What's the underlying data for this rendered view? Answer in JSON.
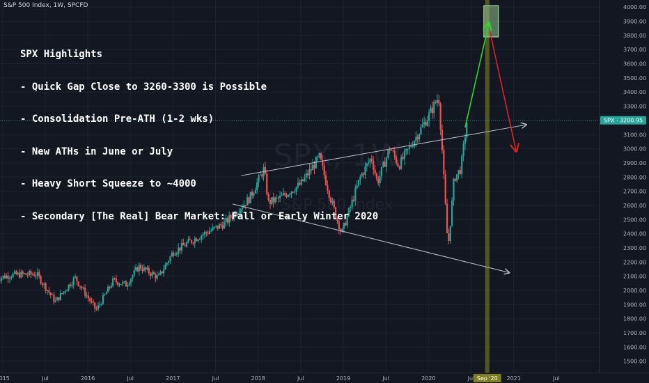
{
  "header": {
    "symbol_title": "S&P 500 Index, 1W, SPCFD"
  },
  "watermark": {
    "ticker": "SPX, 1W",
    "name": "S&P 500 Index"
  },
  "annotation": {
    "title": "SPX Highlights",
    "lines": [
      "- Quick Gap Close to 3260-3300 is Possible",
      "- Consolidation Pre-ATH (1-2 wks)",
      "- New ATHs in June or July",
      "- Heavy Short Squeeze to ~4000",
      "- Secondary [The Real] Bear Market: Fall or Early Winter 2020"
    ]
  },
  "price_label": {
    "text": "SPX · 3200.95",
    "value": 3200.95
  },
  "x_highlight_label": "Sep '20",
  "colors": {
    "background": "#131722",
    "up_candle": "#26a69a",
    "down_candle": "#ef5350",
    "grid": "#1e2230",
    "trendline": "#b2b5be",
    "bull_arrow": "#2ad82a",
    "bear_arrow": "#e02222",
    "target_box": "#8fc08a",
    "time_highlight": "#8a8a22",
    "price_line": "#26a69a"
  },
  "chart_data": {
    "type": "candlestick",
    "interval": "1W",
    "ylim": [
      1420,
      4050
    ],
    "y_ticks": [
      1500,
      1600,
      1700,
      1800,
      1900,
      2000,
      2100,
      2200,
      2300,
      2400,
      2500,
      2600,
      2700,
      2800,
      2900,
      3000,
      3100,
      3200,
      3300,
      3400,
      3500,
      3600,
      3700,
      3800,
      3900,
      4000
    ],
    "x_ticks": [
      {
        "t": 2015.0,
        "label": "2015"
      },
      {
        "t": 2015.5,
        "label": "Jul"
      },
      {
        "t": 2016.0,
        "label": "2016"
      },
      {
        "t": 2016.5,
        "label": "Jul"
      },
      {
        "t": 2017.0,
        "label": "2017"
      },
      {
        "t": 2017.5,
        "label": "Jul"
      },
      {
        "t": 2018.0,
        "label": "2018"
      },
      {
        "t": 2018.5,
        "label": "Jul"
      },
      {
        "t": 2019.0,
        "label": "2019"
      },
      {
        "t": 2019.5,
        "label": "Jul"
      },
      {
        "t": 2020.0,
        "label": "2020"
      },
      {
        "t": 2020.5,
        "label": "Jul"
      },
      {
        "t": 2021.0,
        "label": "2021"
      },
      {
        "t": 2021.5,
        "label": "Jul"
      }
    ],
    "key_closes": [
      {
        "t": 2014.93,
        "c": 2085
      },
      {
        "t": 2015.1,
        "c": 2110
      },
      {
        "t": 2015.4,
        "c": 2115
      },
      {
        "t": 2015.62,
        "c": 1920
      },
      {
        "t": 2015.85,
        "c": 2090
      },
      {
        "t": 2016.1,
        "c": 1860
      },
      {
        "t": 2016.3,
        "c": 2070
      },
      {
        "t": 2016.45,
        "c": 2040
      },
      {
        "t": 2016.6,
        "c": 2170
      },
      {
        "t": 2016.83,
        "c": 2090
      },
      {
        "t": 2017.0,
        "c": 2270
      },
      {
        "t": 2017.3,
        "c": 2380
      },
      {
        "t": 2017.6,
        "c": 2470
      },
      {
        "t": 2017.9,
        "c": 2650
      },
      {
        "t": 2018.07,
        "c": 2860
      },
      {
        "t": 2018.12,
        "c": 2620
      },
      {
        "t": 2018.25,
        "c": 2650
      },
      {
        "t": 2018.5,
        "c": 2750
      },
      {
        "t": 2018.72,
        "c": 2940
      },
      {
        "t": 2018.85,
        "c": 2650
      },
      {
        "t": 2018.98,
        "c": 2400
      },
      {
        "t": 2019.2,
        "c": 2800
      },
      {
        "t": 2019.33,
        "c": 2940
      },
      {
        "t": 2019.4,
        "c": 2760
      },
      {
        "t": 2019.55,
        "c": 3010
      },
      {
        "t": 2019.65,
        "c": 2880
      },
      {
        "t": 2019.85,
        "c": 3080
      },
      {
        "t": 2020.0,
        "c": 3230
      },
      {
        "t": 2020.12,
        "c": 3370
      },
      {
        "t": 2020.16,
        "c": 3000
      },
      {
        "t": 2020.21,
        "c": 2480
      },
      {
        "t": 2020.23,
        "c": 2300
      },
      {
        "t": 2020.26,
        "c": 2500
      },
      {
        "t": 2020.3,
        "c": 2790
      },
      {
        "t": 2020.38,
        "c": 2860
      },
      {
        "t": 2020.42,
        "c": 3050
      },
      {
        "t": 2020.45,
        "c": 3190
      }
    ],
    "trendlines": [
      {
        "from": {
          "t": 2017.8,
          "p": 2810
        },
        "to": {
          "t": 2021.15,
          "p": 3170
        },
        "arrow": true
      },
      {
        "from": {
          "t": 2017.7,
          "p": 2610
        },
        "to": {
          "t": 2020.95,
          "p": 2125
        },
        "arrow": true
      }
    ],
    "projections": [
      {
        "from": {
          "t": 2020.43,
          "p": 3150
        },
        "to": {
          "t": 2020.71,
          "p": 3890
        },
        "color": "bull_arrow"
      },
      {
        "from": {
          "t": 2020.72,
          "p": 3830
        },
        "to": {
          "t": 2021.03,
          "p": 2980
        },
        "color": "bear_arrow"
      }
    ],
    "target_zone": {
      "t0": 2020.65,
      "t1": 2020.82,
      "p0": 3790,
      "p1": 4010
    },
    "time_highlight": {
      "t": 2020.69
    },
    "current_price": 3200.95
  }
}
